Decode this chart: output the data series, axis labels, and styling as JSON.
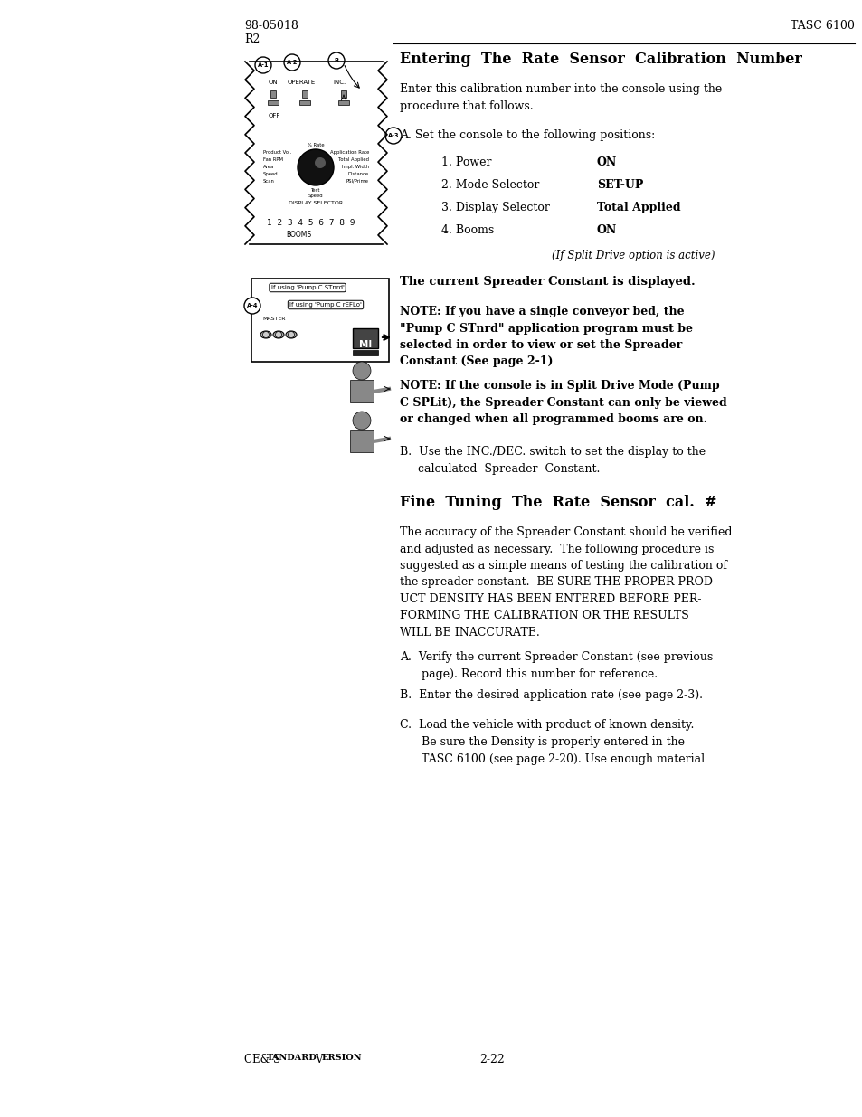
{
  "page_bg": "#ffffff",
  "header_left": "98-05018\nR2",
  "header_right": "TASC 6100",
  "footer_left": "CE & Standard Version",
  "footer_center": "2-22",
  "section1_title": "Entering  The  Rate  Sensor  Calibration  Number",
  "section1_intro": "Enter this calibration number into the console using the\nprocedure that follows.",
  "section1_a_label": "A. Set the console to the following positions:",
  "section1_list": [
    [
      "1. Power",
      "ON"
    ],
    [
      "2. Mode Selector",
      "SET-UP"
    ],
    [
      "3. Display Selector",
      "Total Applied"
    ],
    [
      "4. Booms",
      "ON"
    ]
  ],
  "section1_split_drive": "(If Split Drive option is active)",
  "section1_spreader": "The current Spreader Constant is displayed.",
  "note1": "NOTE: If you have a single conveyor bed, the\n\"Pump C STnrd\" application program must be\nselected in order to view or set the Spreader\nConstant (See page 2-1)",
  "note2": "NOTE: If the console is in Split Drive Mode (Pump\nC SPLit), the Spreader Constant can only be viewed\nor changed when all programmed booms are on.",
  "section1_b": "B.  Use the INC./DEC. switch to set the display to the\n     calculated  Spreader  Constant.",
  "section2_title": "Fine  Tuning  The  Rate  Sensor  cal.  #",
  "section2_intro": "The accuracy of the Spreader Constant should be verified\nand adjusted as necessary.  The following procedure is\nsuggested as a simple means of testing the calibration of\nthe spreader constant.  BE SURE THE PROPER PROD-\nUCT DENSITY HAS BEEN ENTERED BEFORE PER-\nFORMING THE CALIBRATION OR THE RESULTS\nWILL BE INACCURATE.",
  "section2_a": "A.  Verify the current Spreader Constant (see previous\n      page). Record this number for reference.",
  "section2_b": "B.  Enter the desired application rate (see page 2-3).",
  "section2_c": "C.  Load the vehicle with product of known density.\n      Be sure the Density is properly entered in the\n      TASC 6100 (see page 2-20). Use enough material"
}
